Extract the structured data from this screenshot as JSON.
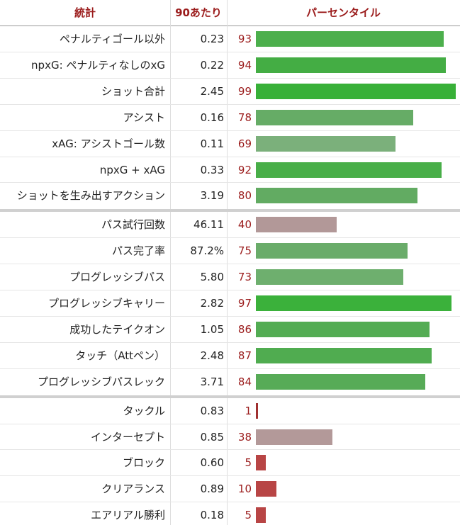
{
  "header": {
    "stat": "統計",
    "per90": "90あたり",
    "percentile": "パーセンタイル"
  },
  "xlim": [
    0,
    100
  ],
  "groups": [
    [
      {
        "stat": "ペナルティゴール以外",
        "per90": "0.23",
        "percentile": 93,
        "color": "#4caf4c"
      },
      {
        "stat": "npxG: ペナルティなしのxG",
        "per90": "0.22",
        "percentile": 94,
        "color": "#44ad44"
      },
      {
        "stat": "ショット合計",
        "per90": "2.45",
        "percentile": 99,
        "color": "#38b038"
      },
      {
        "stat": "アシスト",
        "per90": "0.16",
        "percentile": 78,
        "color": "#66ac66"
      },
      {
        "stat": "xAG: アシストゴール数",
        "per90": "0.11",
        "percentile": 69,
        "color": "#7bb07b"
      },
      {
        "stat": "npxG + xAG",
        "per90": "0.33",
        "percentile": 92,
        "color": "#48ae48"
      },
      {
        "stat": "ショットを生み出すアクション",
        "per90": "3.19",
        "percentile": 80,
        "color": "#62ab62"
      }
    ],
    [
      {
        "stat": "パス試行回数",
        "per90": "46.11",
        "percentile": 40,
        "color": "#b29898"
      },
      {
        "stat": "パス完了率",
        "per90": "87.2%",
        "percentile": 75,
        "color": "#6aac6a"
      },
      {
        "stat": "プログレッシブパス",
        "per90": "5.80",
        "percentile": 73,
        "color": "#6eaf6e"
      },
      {
        "stat": "プログレッシブキャリー",
        "per90": "2.82",
        "percentile": 97,
        "color": "#3bb13b"
      },
      {
        "stat": "成功したテイクオン",
        "per90": "1.05",
        "percentile": 86,
        "color": "#53ac53"
      },
      {
        "stat": "タッチ（Attペン）",
        "per90": "2.48",
        "percentile": 87,
        "color": "#50ac50"
      },
      {
        "stat": "プログレッシブパスレック",
        "per90": "3.71",
        "percentile": 84,
        "color": "#57ab57"
      }
    ],
    [
      {
        "stat": "タックル",
        "per90": "0.83",
        "percentile": 1,
        "color": "#a03030"
      },
      {
        "stat": "インターセプト",
        "per90": "0.85",
        "percentile": 38,
        "color": "#b39999"
      },
      {
        "stat": "ブロック",
        "per90": "0.60",
        "percentile": 5,
        "color": "#b84545"
      },
      {
        "stat": "クリアランス",
        "per90": "0.89",
        "percentile": 10,
        "color": "#b84545"
      },
      {
        "stat": "エアリアル勝利",
        "per90": "0.18",
        "percentile": 5,
        "color": "#b84545"
      }
    ]
  ]
}
